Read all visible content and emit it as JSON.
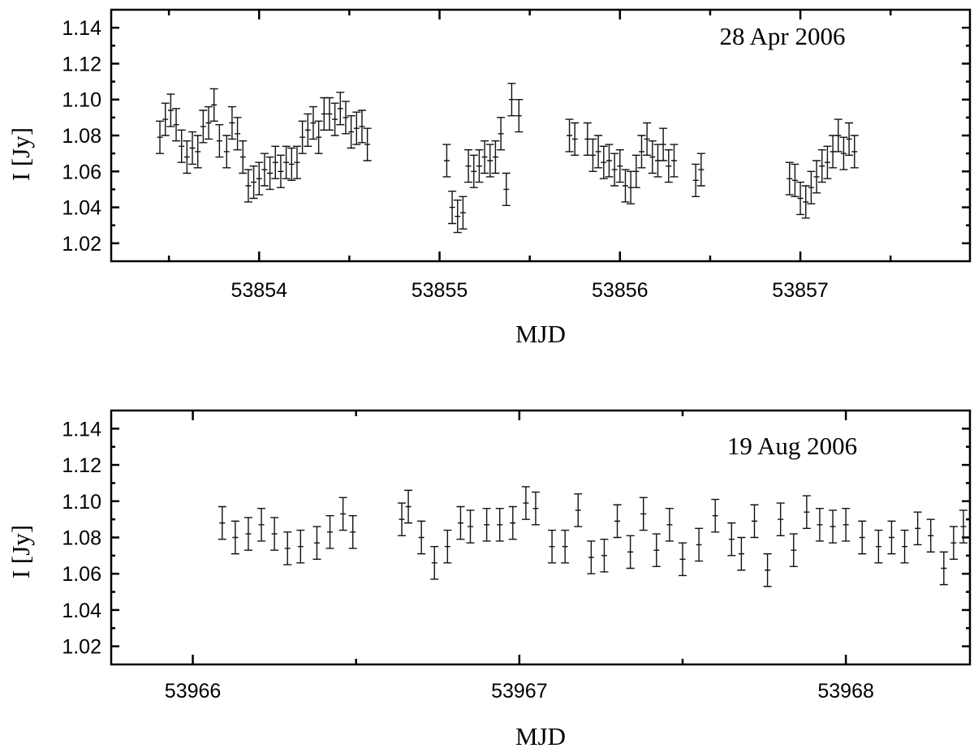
{
  "chart_data": [
    {
      "type": "scatter",
      "annotation": "28 Apr 2006",
      "xlabel": "MJD",
      "ylabel": "I [Jy]",
      "xlim": [
        53853.18,
        53857.94
      ],
      "ylim": [
        1.01,
        1.15
      ],
      "xticks": [
        "53854",
        "53855",
        "53856",
        "53857"
      ],
      "yticks": [
        "1.02",
        "1.04",
        "1.06",
        "1.08",
        "1.10",
        "1.12",
        "1.14"
      ],
      "error": 0.009,
      "x": [
        53853.45,
        53853.48,
        53853.51,
        53853.54,
        53853.57,
        53853.6,
        53853.63,
        53853.66,
        53853.69,
        53853.72,
        53853.75,
        53853.78,
        53853.82,
        53853.85,
        53853.88,
        53853.91,
        53853.94,
        53853.97,
        53854.0,
        53854.03,
        53854.06,
        53854.09,
        53854.12,
        53854.15,
        53854.18,
        53854.21,
        53854.24,
        53854.27,
        53854.3,
        53854.33,
        53854.36,
        53854.39,
        53854.42,
        53854.45,
        53854.48,
        53854.51,
        53854.54,
        53854.57,
        53854.6,
        53855.04,
        53855.07,
        53855.1,
        53855.13,
        53855.16,
        53855.19,
        53855.22,
        53855.25,
        53855.28,
        53855.31,
        53855.34,
        53855.37,
        53855.4,
        53855.44,
        53855.72,
        53855.75,
        53855.82,
        53855.85,
        53855.88,
        53855.91,
        53855.94,
        53855.97,
        53856.0,
        53856.03,
        53856.06,
        53856.09,
        53856.12,
        53856.15,
        53856.18,
        53856.21,
        53856.24,
        53856.27,
        53856.3,
        53856.42,
        53856.45,
        53856.94,
        53856.97,
        53857.0,
        53857.03,
        53857.06,
        53857.09,
        53857.12,
        53857.15,
        53857.18,
        53857.21,
        53857.24,
        53857.27,
        53857.3
      ],
      "y": [
        1.079,
        1.089,
        1.094,
        1.086,
        1.074,
        1.068,
        1.073,
        1.071,
        1.085,
        1.087,
        1.097,
        1.077,
        1.071,
        1.087,
        1.081,
        1.068,
        1.052,
        1.054,
        1.056,
        1.061,
        1.059,
        1.065,
        1.06,
        1.065,
        1.064,
        1.065,
        1.079,
        1.083,
        1.087,
        1.079,
        1.092,
        1.092,
        1.089,
        1.095,
        1.09,
        1.082,
        1.084,
        1.085,
        1.075,
        1.066,
        1.04,
        1.035,
        1.037,
        1.063,
        1.06,
        1.063,
        1.068,
        1.066,
        1.068,
        1.081,
        1.05,
        1.1,
        1.091,
        1.08,
        1.078,
        1.078,
        1.069,
        1.071,
        1.065,
        1.066,
        1.061,
        1.063,
        1.052,
        1.051,
        1.06,
        1.071,
        1.078,
        1.068,
        1.066,
        1.075,
        1.063,
        1.066,
        1.055,
        1.061,
        1.056,
        1.055,
        1.045,
        1.043,
        1.051,
        1.057,
        1.063,
        1.065,
        1.071,
        1.08,
        1.07,
        1.078,
        1.071
      ]
    },
    {
      "type": "scatter",
      "annotation": "19 Aug 2006",
      "xlabel": "MJD",
      "ylabel": "I [Jy]",
      "xlim": [
        53965.75,
        53968.38
      ],
      "ylim": [
        1.01,
        1.15
      ],
      "xticks": [
        "53966",
        "53967",
        "53968"
      ],
      "yticks": [
        "1.02",
        "1.04",
        "1.06",
        "1.08",
        "1.10",
        "1.12",
        "1.14"
      ],
      "error": 0.009,
      "x": [
        53966.09,
        53966.13,
        53966.17,
        53966.21,
        53966.25,
        53966.29,
        53966.33,
        53966.38,
        53966.42,
        53966.46,
        53966.49,
        53966.64,
        53966.66,
        53966.7,
        53966.74,
        53966.78,
        53966.82,
        53966.85,
        53966.9,
        53966.94,
        53966.98,
        53967.02,
        53967.05,
        53967.1,
        53967.14,
        53967.18,
        53967.22,
        53967.26,
        53967.3,
        53967.34,
        53967.38,
        53967.42,
        53967.46,
        53967.5,
        53967.55,
        53967.6,
        53967.65,
        53967.68,
        53967.72,
        53967.76,
        53967.8,
        53967.84,
        53967.88,
        53967.92,
        53967.96,
        53968.0,
        53968.05,
        53968.1,
        53968.14,
        53968.18,
        53968.22,
        53968.26,
        53968.3,
        53968.33,
        53968.36
      ],
      "y": [
        1.088,
        1.08,
        1.082,
        1.087,
        1.082,
        1.074,
        1.075,
        1.077,
        1.083,
        1.093,
        1.083,
        1.09,
        1.097,
        1.08,
        1.066,
        1.075,
        1.088,
        1.086,
        1.087,
        1.087,
        1.088,
        1.099,
        1.096,
        1.075,
        1.075,
        1.095,
        1.069,
        1.07,
        1.089,
        1.072,
        1.093,
        1.073,
        1.087,
        1.068,
        1.076,
        1.092,
        1.079,
        1.071,
        1.089,
        1.062,
        1.09,
        1.073,
        1.094,
        1.087,
        1.086,
        1.087,
        1.08,
        1.075,
        1.08,
        1.075,
        1.085,
        1.081,
        1.063,
        1.077,
        1.086
      ]
    }
  ]
}
